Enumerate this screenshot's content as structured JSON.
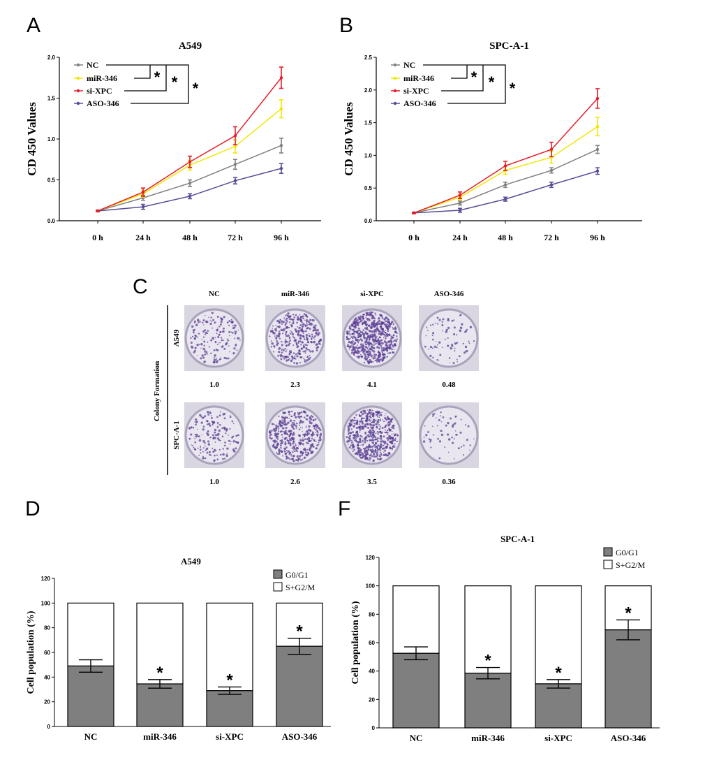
{
  "panel_labels": {
    "a": "A",
    "b": "B",
    "c": "C",
    "d": "D",
    "f": "F"
  },
  "colors": {
    "NC": "#808080",
    "miR-346": "#f2e600",
    "si-XPC": "#e41e2b",
    "ASO-346": "#5a4a96"
  },
  "chart_data": [
    {
      "id": "A",
      "type": "line",
      "title": "A549",
      "xlabel": "",
      "ylabel": "CD 450 Values",
      "categories": [
        "0 h",
        "24 h",
        "48 h",
        "72 h",
        "96 h"
      ],
      "ylim": [
        0,
        2.0
      ],
      "yticks": [
        "0.0",
        "0.5",
        "1.0",
        "1.5",
        "2.0"
      ],
      "legend_placement": "top-left",
      "series": [
        {
          "name": "NC",
          "values": [
            0.12,
            0.28,
            0.46,
            0.69,
            0.92
          ],
          "errors": [
            0.01,
            0.03,
            0.04,
            0.06,
            0.09
          ]
        },
        {
          "name": "miR-346",
          "values": [
            0.12,
            0.33,
            0.68,
            0.91,
            1.37
          ],
          "errors": [
            0.01,
            0.04,
            0.06,
            0.08,
            0.11
          ]
        },
        {
          "name": "si-XPC",
          "values": [
            0.12,
            0.35,
            0.72,
            1.04,
            1.75
          ],
          "errors": [
            0.01,
            0.05,
            0.07,
            0.11,
            0.13
          ]
        },
        {
          "name": "ASO-346",
          "values": [
            0.12,
            0.17,
            0.3,
            0.49,
            0.64
          ],
          "errors": [
            0.01,
            0.03,
            0.03,
            0.04,
            0.06
          ]
        }
      ],
      "significance": [
        "*",
        "*",
        "*"
      ]
    },
    {
      "id": "B",
      "type": "line",
      "title": "SPC-A-1",
      "xlabel": "",
      "ylabel": "CD 450 Values",
      "categories": [
        "0 h",
        "24 h",
        "48 h",
        "72 h",
        "96 h"
      ],
      "ylim": [
        0,
        2.5
      ],
      "yticks": [
        "0.0",
        "0.5",
        "1.0",
        "1.5",
        "2.0",
        "2.5"
      ],
      "legend_placement": "top-left",
      "series": [
        {
          "name": "NC",
          "values": [
            0.12,
            0.27,
            0.55,
            0.77,
            1.09
          ],
          "errors": [
            0.01,
            0.03,
            0.04,
            0.04,
            0.06
          ]
        },
        {
          "name": "miR-346",
          "values": [
            0.12,
            0.36,
            0.77,
            0.97,
            1.44
          ],
          "errors": [
            0.01,
            0.04,
            0.06,
            0.09,
            0.14
          ]
        },
        {
          "name": "si-XPC",
          "values": [
            0.12,
            0.39,
            0.84,
            1.09,
            1.87
          ],
          "errors": [
            0.01,
            0.05,
            0.07,
            0.11,
            0.15
          ]
        },
        {
          "name": "ASO-346",
          "values": [
            0.12,
            0.16,
            0.33,
            0.55,
            0.76
          ],
          "errors": [
            0.01,
            0.03,
            0.03,
            0.04,
            0.05
          ]
        }
      ],
      "significance": [
        "*",
        "*",
        "*"
      ]
    },
    {
      "id": "D",
      "type": "bar",
      "title": "A549",
      "ylabel": "Cell population (%)",
      "categories": [
        "NC",
        "miR-346",
        "si-XPC",
        "ASO-346"
      ],
      "ylim": [
        0,
        120
      ],
      "yticks": [
        "0",
        "20",
        "40",
        "60",
        "80",
        "100",
        "120"
      ],
      "legend_placement": "top-right",
      "series": [
        {
          "name": "G0/G1",
          "values": [
            49,
            34.5,
            29,
            65
          ],
          "errors": [
            5,
            3.5,
            3,
            6.5
          ]
        },
        {
          "name": "S+G2/M",
          "values": [
            51,
            65.5,
            71,
            35
          ]
        }
      ],
      "significance": [
        "",
        "*",
        "*",
        "*"
      ]
    },
    {
      "id": "F",
      "type": "bar",
      "title": "SPC-A-1",
      "ylabel": "Cell population (%)",
      "categories": [
        "NC",
        "miR-346",
        "si-XPC",
        "ASO-346"
      ],
      "ylim": [
        0,
        120
      ],
      "yticks": [
        "0",
        "20",
        "40",
        "60",
        "80",
        "100",
        "120"
      ],
      "legend_placement": "top-right",
      "series": [
        {
          "name": "G0/G1",
          "values": [
            52.5,
            38.5,
            31,
            69
          ],
          "errors": [
            4.5,
            4,
            3,
            7
          ]
        },
        {
          "name": "S+G2/M",
          "values": [
            47.5,
            61.5,
            69,
            31
          ]
        }
      ],
      "significance": [
        "",
        "*",
        "*",
        "*"
      ]
    }
  ],
  "colony": {
    "side_label": "Colony Formation",
    "columns": [
      "NC",
      "miR-346",
      "si-XPC",
      "ASO-346"
    ],
    "rows": [
      {
        "label": "A549",
        "values": [
          "1.0",
          "2.3",
          "4.1",
          "0.48"
        ],
        "density": [
          1.0,
          2.3,
          4.1,
          0.48
        ]
      },
      {
        "label": "SPC-A-1",
        "values": [
          "1.0",
          "2.6",
          "3.5",
          "0.36"
        ],
        "density": [
          1.0,
          2.6,
          3.5,
          0.36
        ]
      }
    ]
  }
}
